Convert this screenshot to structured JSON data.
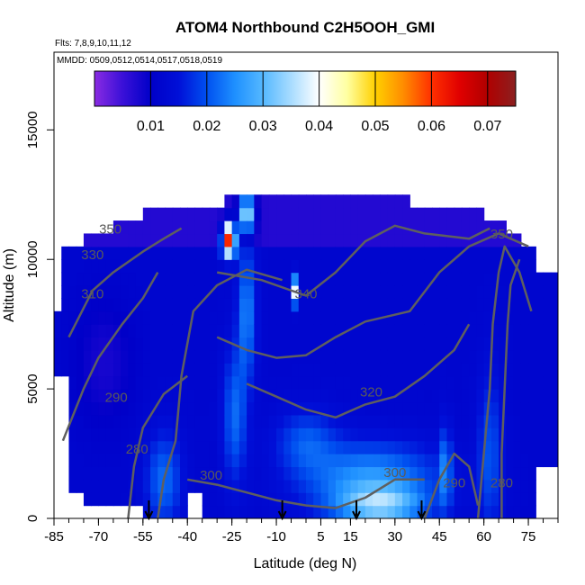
{
  "chart_data": {
    "type": "heatmap",
    "title": "ATOM4 Northbound C2H5OOH_GMI",
    "subtitle_flights": "Flts: 7,8,9,10,11,12",
    "subtitle_dates": "MMDD: 0509,0512,0514,0517,0518,0519",
    "xlabel": "Latitude (deg N)",
    "ylabel": "Altitude (m)",
    "xlim": [
      -85,
      85
    ],
    "ylim": [
      0,
      18000
    ],
    "x_ticks": [
      -85,
      -70,
      -55,
      -40,
      -25,
      -10,
      5,
      15,
      30,
      45,
      60,
      75
    ],
    "y_ticks": [
      0,
      5000,
      10000,
      15000
    ],
    "colorbar": {
      "range": [
        0,
        0.075
      ],
      "ticks": [
        "0.01",
        "0.02",
        "0.03",
        "0.04",
        "0.05",
        "0.06",
        "0.07"
      ],
      "tick_values": [
        0.01,
        0.02,
        0.03,
        0.04,
        0.05,
        0.06,
        0.07
      ],
      "colors": [
        "#8a2be2",
        "#3a10d8",
        "#0000c8",
        "#0010d8",
        "#0050f0",
        "#1e90ff",
        "#55b8ff",
        "#a8dcff",
        "#ffffff",
        "#ffffa0",
        "#ffd000",
        "#ff8c00",
        "#ff3000",
        "#e00000",
        "#b00000",
        "#8b2020"
      ],
      "location": "top"
    },
    "contour_labels": [
      {
        "text": "280",
        "lat": -57,
        "alt": 2500
      },
      {
        "text": "290",
        "lat": -64,
        "alt": 4500
      },
      {
        "text": "300",
        "lat": -32,
        "alt": 1500
      },
      {
        "text": "310",
        "lat": -72,
        "alt": 8500
      },
      {
        "text": "330",
        "lat": -72,
        "alt": 10000
      },
      {
        "text": "350",
        "lat": -66,
        "alt": 11000
      },
      {
        "text": "320",
        "lat": 22,
        "alt": 4700
      },
      {
        "text": "340",
        "lat": 0,
        "alt": 8500
      },
      {
        "text": "300",
        "lat": 30,
        "alt": 1600
      },
      {
        "text": "290",
        "lat": 50,
        "alt": 1200
      },
      {
        "text": "280",
        "lat": 66,
        "alt": 1200
      },
      {
        "text": "350",
        "lat": 66,
        "alt": 10800
      }
    ],
    "arrows_lat": [
      -53,
      -8,
      17,
      39
    ],
    "grid": false
  }
}
